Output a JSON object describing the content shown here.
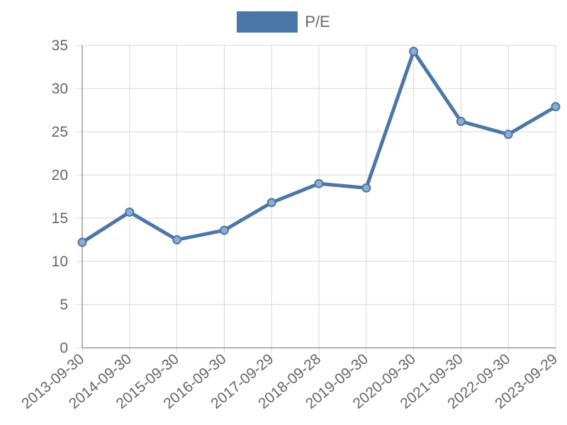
{
  "colors": {
    "series": "#4a77a8",
    "grid": "#d9d9d9",
    "axis": "#999999",
    "text": "#666666"
  },
  "chart_data": {
    "type": "line",
    "x": [
      "2013-09-30",
      "2014-09-30",
      "2015-09-30",
      "2016-09-30",
      "2017-09-29",
      "2018-09-28",
      "2019-09-30",
      "2020-09-30",
      "2021-09-30",
      "2022-09-30",
      "2023-09-29"
    ],
    "series": [
      {
        "name": "P/E",
        "values": [
          12.2,
          15.7,
          12.5,
          13.6,
          16.8,
          19.0,
          18.5,
          34.3,
          26.2,
          24.7,
          27.9
        ]
      }
    ],
    "yticks": [
      0,
      5,
      10,
      15,
      20,
      25,
      30,
      35
    ],
    "ylim": [
      0,
      35
    ],
    "grid": true,
    "legend": "top-center"
  }
}
